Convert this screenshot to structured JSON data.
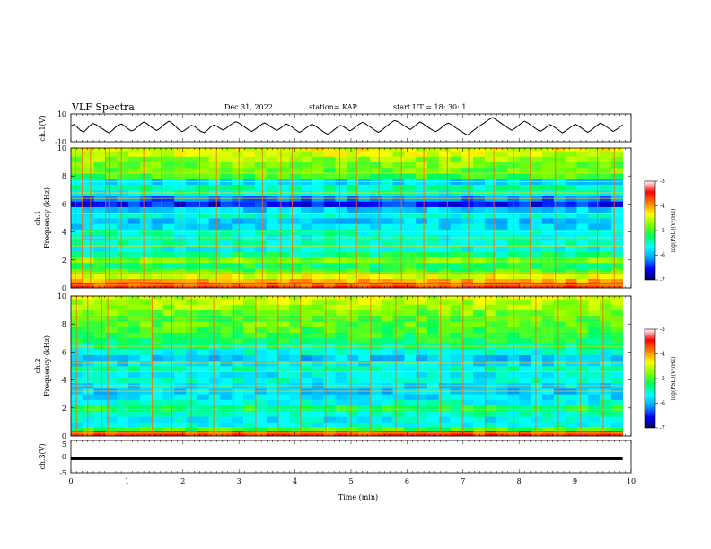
{
  "header": {
    "title": "VLF Spectra",
    "date": "Dec.31, 2022",
    "station": "station= KAP",
    "start": "start  UT  =   18: 30: 1"
  },
  "chart_data": [
    {
      "type": "line",
      "panel": "channel-1-waveform",
      "ylabel": "ch.1(V)",
      "ylim": [
        -10,
        10
      ],
      "yticks": [
        "10",
        "-10"
      ],
      "xlim": [
        0,
        10
      ],
      "x_extent": 9.85,
      "samples": [
        1.2,
        2.5,
        0.4,
        -1.8,
        -3.0,
        -0.9,
        1.7,
        3.1,
        2.2,
        0.6,
        -0.8,
        -2.4,
        -3.6,
        -2.0,
        0.3,
        1.9,
        2.8,
        1.0,
        -0.7,
        -2.2,
        -1.5,
        0.8,
        2.6,
        4.2,
        3.0,
        1.1,
        -0.5,
        -1.9,
        -0.6,
        1.4,
        3.4,
        4.8,
        3.2,
        1.0,
        -1.2,
        -2.8,
        -1.6,
        0.2,
        1.8,
        0.9,
        -0.9,
        -2.6,
        -3.4,
        -1.8,
        0.4,
        2.0,
        1.2,
        -0.4,
        -1.6,
        -0.2,
        1.6,
        3.2,
        4.4,
        3.4,
        1.8,
        0.2,
        -1.4,
        -2.6,
        -1.2,
        0.6,
        2.2,
        3.6,
        2.4,
        0.8,
        -0.6,
        -1.8,
        -0.4,
        1.4,
        2.8,
        1.6,
        0.0,
        -1.6,
        -3.2,
        -2.2,
        -0.4,
        1.2,
        2.6,
        1.4,
        -0.2,
        -1.8,
        -3.4,
        -4.6,
        -3.2,
        -1.4,
        0.4,
        1.8,
        0.8,
        -0.8,
        -2.2,
        -0.8,
        1.0,
        2.8,
        4.0,
        2.8,
        1.2,
        -0.4,
        -2.0,
        -3.2,
        -1.8,
        0.2,
        2.0,
        3.8,
        5.2,
        4.6,
        3.2,
        1.6,
        0.2,
        -1.2,
        0.4,
        2.4,
        4.2,
        3.0,
        1.4,
        -0.2,
        -1.6,
        -2.8,
        -1.4,
        0.4,
        2.2,
        3.4,
        2.2,
        0.6,
        -1.0,
        -2.4,
        -3.8,
        -5.2,
        -3.6,
        -1.8,
        0.0,
        1.6,
        3.0,
        4.6,
        6.2,
        7.4,
        6.0,
        4.4,
        2.8,
        1.2,
        -0.4,
        -1.8,
        -0.4,
        1.4,
        3.2,
        4.8,
        3.6,
        2.0,
        0.4,
        -1.2,
        -2.6,
        -1.2,
        0.6,
        2.4,
        1.2,
        -0.4,
        -2.0,
        -3.6,
        -2.2,
        -0.6,
        1.0,
        2.6,
        1.4,
        -0.2,
        -1.8,
        -3.2,
        -1.8,
        0.0,
        1.8,
        3.4,
        2.2,
        0.6,
        -1.0,
        -2.6,
        -1.2,
        0.4,
        2.2
      ]
    },
    {
      "type": "heatmap",
      "panel": "channel-1-spectrogram",
      "ylabel": "ch.1\nFrequency (kHz)",
      "ylabel_line1": "ch.1",
      "ylabel_line2": "Frequency  (kHz)",
      "ylim": [
        0,
        10
      ],
      "yticks": [
        "0",
        "2",
        "4",
        "6",
        "8",
        "10"
      ],
      "xlim": [
        0,
        10
      ],
      "x_extent": 9.85,
      "value_label": "log(PSD)(V²/Hz)",
      "value_range": [
        -7,
        -3
      ],
      "profile": [
        {
          "f": 0.2,
          "v": -3.6
        },
        {
          "f": 0.5,
          "v": -4.0
        },
        {
          "f": 0.8,
          "v": -4.4
        },
        {
          "f": 1.2,
          "v": -5.0
        },
        {
          "f": 1.6,
          "v": -5.2
        },
        {
          "f": 2.0,
          "v": -4.8
        },
        {
          "f": 2.4,
          "v": -5.3
        },
        {
          "f": 2.8,
          "v": -5.6
        },
        {
          "f": 3.2,
          "v": -5.5
        },
        {
          "f": 3.6,
          "v": -5.6
        },
        {
          "f": 4.0,
          "v": -5.5
        },
        {
          "f": 4.4,
          "v": -5.8
        },
        {
          "f": 4.8,
          "v": -5.9
        },
        {
          "f": 5.2,
          "v": -5.6
        },
        {
          "f": 5.6,
          "v": -5.9
        },
        {
          "f": 6.0,
          "v": -6.5
        },
        {
          "f": 6.4,
          "v": -6.2
        },
        {
          "f": 6.8,
          "v": -5.6
        },
        {
          "f": 7.2,
          "v": -5.4
        },
        {
          "f": 7.6,
          "v": -5.8
        },
        {
          "f": 8.0,
          "v": -5.0
        },
        {
          "f": 8.4,
          "v": -4.9
        },
        {
          "f": 8.8,
          "v": -4.8
        },
        {
          "f": 9.2,
          "v": -4.7
        },
        {
          "f": 9.6,
          "v": -4.5
        },
        {
          "f": 10.0,
          "v": -4.4
        }
      ],
      "lines_khz": [
        0.2,
        0.5,
        1.1,
        1.9,
        2.2,
        3.0,
        3.6,
        4.0,
        5.3,
        6.4,
        6.8,
        7.6,
        8.2
      ],
      "bursts_min": [
        0.08,
        0.2,
        0.35,
        0.62,
        0.68,
        0.9,
        1.3,
        1.62,
        1.95,
        2.3,
        2.6,
        3.0,
        3.42,
        3.75,
        3.95,
        4.3,
        4.8,
        5.1,
        5.5,
        5.9,
        6.3,
        6.72,
        7.1,
        7.55,
        7.9,
        8.2,
        8.65,
        9.0,
        9.4,
        9.7
      ]
    },
    {
      "type": "heatmap",
      "panel": "channel-2-spectrogram",
      "ylabel_line1": "ch.2",
      "ylabel_line2": "Frequency  (kHz)",
      "ylim": [
        0,
        10
      ],
      "yticks": [
        "0",
        "2",
        "4",
        "6",
        "8",
        "10"
      ],
      "xlim": [
        0,
        10
      ],
      "x_extent": 9.85,
      "value_label": "log(PSD)(V²/Hz)",
      "value_range": [
        -7,
        -3
      ],
      "profile": [
        {
          "f": 0.2,
          "v": -3.6
        },
        {
          "f": 0.5,
          "v": -5.0
        },
        {
          "f": 0.8,
          "v": -5.6
        },
        {
          "f": 1.2,
          "v": -5.7
        },
        {
          "f": 1.6,
          "v": -5.5
        },
        {
          "f": 2.0,
          "v": -5.2
        },
        {
          "f": 2.4,
          "v": -5.6
        },
        {
          "f": 2.8,
          "v": -5.8
        },
        {
          "f": 3.2,
          "v": -5.9
        },
        {
          "f": 3.6,
          "v": -5.8
        },
        {
          "f": 4.0,
          "v": -5.6
        },
        {
          "f": 4.4,
          "v": -5.7
        },
        {
          "f": 4.8,
          "v": -5.5
        },
        {
          "f": 5.2,
          "v": -5.8
        },
        {
          "f": 5.6,
          "v": -5.9
        },
        {
          "f": 6.0,
          "v": -5.6
        },
        {
          "f": 6.4,
          "v": -5.4
        },
        {
          "f": 6.8,
          "v": -5.2
        },
        {
          "f": 7.2,
          "v": -5.1
        },
        {
          "f": 7.6,
          "v": -5.0
        },
        {
          "f": 8.0,
          "v": -4.9
        },
        {
          "f": 8.4,
          "v": -5.0
        },
        {
          "f": 8.8,
          "v": -4.8
        },
        {
          "f": 9.2,
          "v": -4.7
        },
        {
          "f": 9.6,
          "v": -4.6
        },
        {
          "f": 10.0,
          "v": -4.5
        }
      ],
      "lines_khz": [
        0.2,
        1.9,
        3.2,
        3.6,
        4.6,
        5.2,
        6.4,
        7.2,
        8.4
      ],
      "bursts_min": [
        0.1,
        0.3,
        0.55,
        0.66,
        1.0,
        1.45,
        1.8,
        2.15,
        2.55,
        2.9,
        3.3,
        3.7,
        4.1,
        4.55,
        5.0,
        5.35,
        5.8,
        6.2,
        6.6,
        7.0,
        7.4,
        7.9,
        8.3,
        8.7,
        9.1,
        9.5
      ]
    },
    {
      "type": "line",
      "panel": "channel-3-waveform",
      "ylabel": "ch.3(V)",
      "ylim": [
        -5,
        5
      ],
      "yticks": [
        "5",
        "0",
        "-5"
      ],
      "xlim": [
        0,
        10
      ],
      "x_extent": 9.85,
      "level": -0.6,
      "band_half_width": 0.5,
      "xlabel": "Time  (min)",
      "xticks": [
        "0",
        "1",
        "2",
        "3",
        "4",
        "5",
        "6",
        "7",
        "8",
        "9",
        "10"
      ]
    }
  ],
  "colorbar": {
    "ticks": [
      "-3",
      "-4",
      "-5",
      "-6",
      "-7"
    ],
    "label": "log(PSD)(V²/Hz)",
    "stops": [
      "#000060",
      "#0000ff",
      "#00a0ff",
      "#00ffff",
      "#00ff60",
      "#80ff00",
      "#ffff00",
      "#ff8000",
      "#ff0000",
      "#ffffff"
    ]
  }
}
